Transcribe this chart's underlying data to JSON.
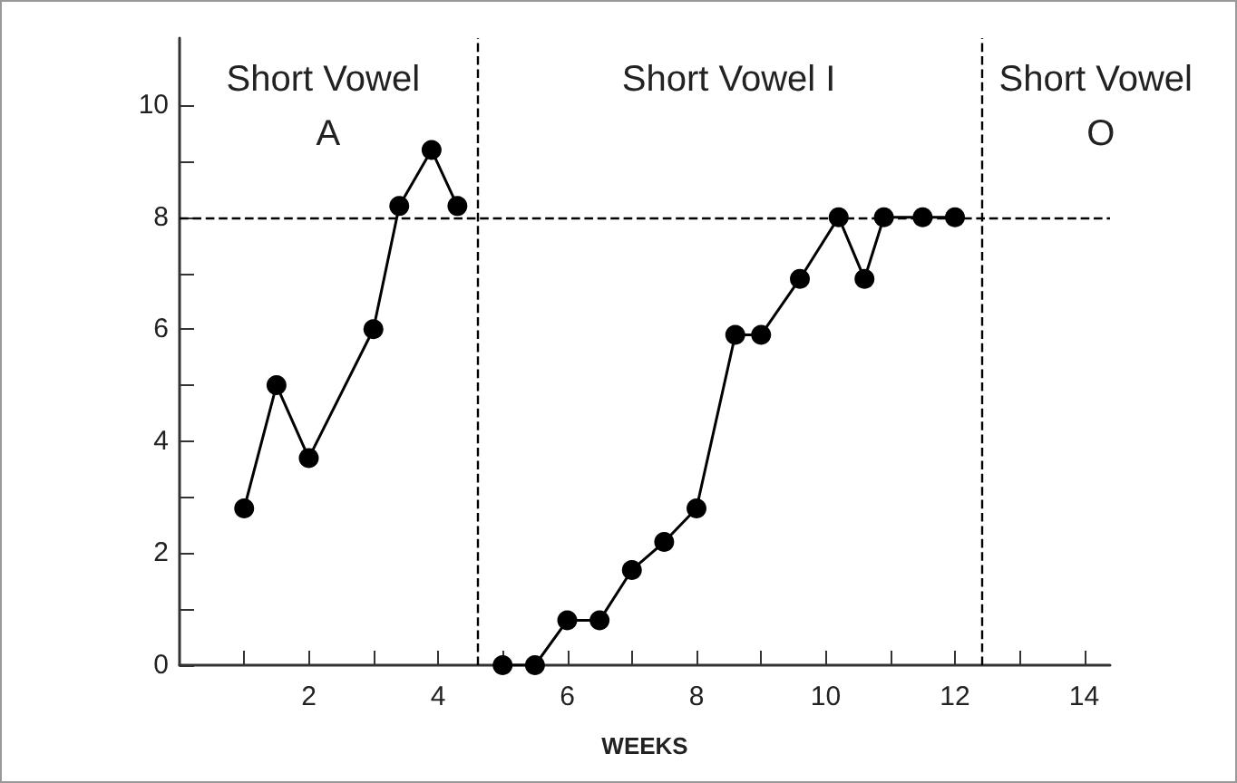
{
  "chart_data": {
    "type": "line",
    "xlabel": "WEEKS",
    "xlim": [
      0,
      14.4
    ],
    "ylim": [
      0,
      11.2
    ],
    "xticks": [
      {
        "value": 1,
        "label": null
      },
      2,
      {
        "value": 3,
        "label": null
      },
      4,
      {
        "value": 5,
        "label": null
      },
      6,
      {
        "value": 7,
        "label": null
      },
      8,
      {
        "value": 9,
        "label": null
      },
      10,
      {
        "value": 11,
        "label": null
      },
      12,
      {
        "value": 13,
        "label": null
      },
      14
    ],
    "yticks": [
      0,
      {
        "value": 1,
        "label": null
      },
      2,
      {
        "value": 3,
        "label": null
      },
      4,
      {
        "value": 5,
        "label": null
      },
      6,
      {
        "value": 7,
        "label": null
      },
      8,
      {
        "value": 9,
        "label": null
      },
      10
    ],
    "series": [
      {
        "color": "#000000",
        "x": [
          1,
          1.5,
          2,
          3,
          3.4,
          3.9,
          4.3
        ],
        "values": [
          2.8,
          5,
          3.7,
          6,
          8.2,
          9.2,
          8.2
        ]
      },
      {
        "color": "#000000",
        "x": [
          5,
          5.5,
          6,
          6.5,
          7,
          7.5,
          8,
          8.6,
          9,
          9.6,
          10.2,
          10.6,
          10.9,
          11.5,
          12
        ],
        "values": [
          0,
          0,
          0.8,
          0.8,
          1.7,
          2.2,
          2.8,
          5.9,
          5.9,
          6.9,
          8,
          6.9,
          8,
          8,
          8
        ]
      }
    ],
    "ref_lines": [
      {
        "axis": "x",
        "value": 4.6,
        "line_style": "dashed",
        "color": "#000000"
      },
      {
        "axis": "x",
        "value": 12.4,
        "line_style": "dashed",
        "color": "#000000"
      },
      {
        "axis": "y",
        "value": 8,
        "line_style": "dashed",
        "color": "#000000"
      }
    ],
    "annotations": [
      "Short Vowel A",
      "Short Vowel I",
      "Short Vowel O"
    ],
    "marker": "circle",
    "line_style": "solid",
    "grid": false
  }
}
